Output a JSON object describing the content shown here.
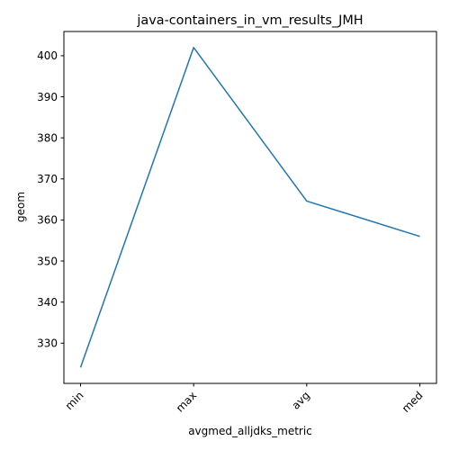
{
  "chart_data": {
    "type": "line",
    "title": "java-containers_in_vm_results_JMH",
    "xlabel": "avgmed_alljdks_metric",
    "ylabel": "geom",
    "categories": [
      "min",
      "max",
      "avg",
      "med"
    ],
    "series": [
      {
        "values": [
          324.1,
          402.0,
          364.6,
          356.0
        ],
        "color": "#1f77b4"
      }
    ],
    "ylim": [
      320.2,
      405.9
    ],
    "yticks": [
      330,
      340,
      350,
      360,
      370,
      380,
      390,
      400
    ],
    "ytick_labels": [
      "330",
      "340",
      "350",
      "360",
      "370",
      "380",
      "390",
      "400"
    ],
    "x_tick_rotation": 45,
    "grid": false,
    "legend": "none"
  }
}
